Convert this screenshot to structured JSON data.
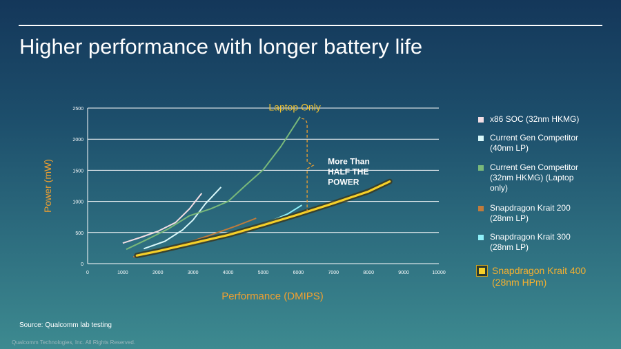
{
  "slide": {
    "title": "Higher performance with longer battery life",
    "source": "Source: Qualcomm lab testing",
    "footer": "Qualcomm Technologies, Inc.    All Rights Reserved."
  },
  "colors": {
    "axis_label": "#f0a030",
    "laptop_only": "#f4c431",
    "grid": "#ffffff",
    "krait400_fill": "#f6d028",
    "krait400_outline": "#3a3a22"
  },
  "chart_data": {
    "type": "line",
    "title": "",
    "xlabel": "Performance (DMIPS)",
    "ylabel": "Power (mW)",
    "xlim": [
      0,
      10000
    ],
    "ylim": [
      0,
      2500
    ],
    "xticks": [
      0,
      1000,
      2000,
      3000,
      4000,
      5000,
      6000,
      7000,
      8000,
      9000,
      10000
    ],
    "yticks": [
      0,
      500,
      1000,
      1500,
      2000,
      2500
    ],
    "grid": true,
    "legend_position": "right",
    "annotations": {
      "laptop_only": "Laptop Only",
      "half_power": [
        "More Than",
        "HALF THE",
        "POWER"
      ],
      "bracket_x": 6250,
      "bracket_top_y": 2330,
      "bracket_bottom_y": 830
    },
    "series": [
      {
        "name": "x86 SOC (32nm HKMG)",
        "color": "#f2dde3",
        "points": [
          [
            1000,
            330
          ],
          [
            1500,
            420
          ],
          [
            2000,
            520
          ],
          [
            2500,
            660
          ],
          [
            2900,
            880
          ],
          [
            3250,
            1130
          ]
        ]
      },
      {
        "name": "Current Gen Competitor (40nm LP)",
        "color": "#d8f8fa",
        "points": [
          [
            1600,
            240
          ],
          [
            2200,
            360
          ],
          [
            2700,
            540
          ],
          [
            3000,
            700
          ],
          [
            3350,
            960
          ],
          [
            3800,
            1230
          ]
        ]
      },
      {
        "name": "Current Gen Competitor (32nm HKMG) (Laptop only)",
        "color": "#79b97a",
        "points": [
          [
            1100,
            230
          ],
          [
            1700,
            390
          ],
          [
            2300,
            560
          ],
          [
            2900,
            770
          ],
          [
            3500,
            880
          ],
          [
            4000,
            1000
          ],
          [
            4500,
            1260
          ],
          [
            5000,
            1510
          ],
          [
            5500,
            1880
          ],
          [
            6050,
            2360
          ]
        ]
      },
      {
        "name": "Snapdragon Krait 200 (28nm LP)",
        "color": "#c07b3c",
        "points": [
          [
            1300,
            110
          ],
          [
            2000,
            200
          ],
          [
            2800,
            330
          ],
          [
            3500,
            460
          ],
          [
            4200,
            600
          ],
          [
            4800,
            730
          ]
        ]
      },
      {
        "name": "Snapdragon Krait 300 (28nm LP)",
        "color": "#8ff0f8",
        "points": [
          [
            1500,
            160
          ],
          [
            2200,
            230
          ],
          [
            3000,
            310
          ],
          [
            3800,
            430
          ],
          [
            4600,
            560
          ],
          [
            5200,
            680
          ],
          [
            5700,
            800
          ],
          [
            6100,
            940
          ]
        ]
      },
      {
        "name": "Snapdragon Krait 400 (28nm HPm)",
        "color": "#f6d028",
        "highlight": true,
        "points": [
          [
            1400,
            130
          ],
          [
            2000,
            200
          ],
          [
            3000,
            330
          ],
          [
            4000,
            460
          ],
          [
            5000,
            620
          ],
          [
            6000,
            790
          ],
          [
            7000,
            970
          ],
          [
            8000,
            1160
          ],
          [
            8600,
            1320
          ]
        ]
      }
    ]
  }
}
